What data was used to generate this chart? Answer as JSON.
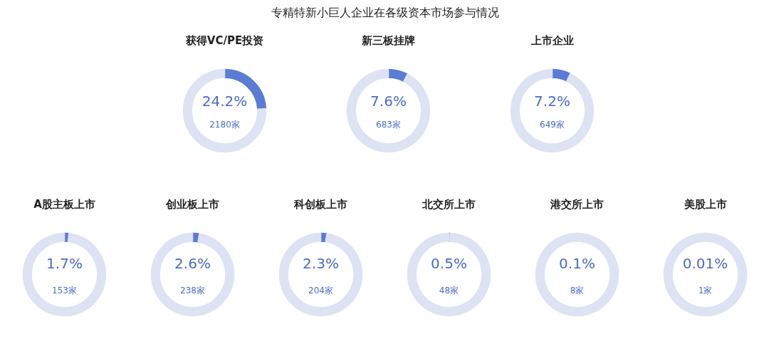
{
  "chart_data": [
    {
      "type": "other",
      "title": "专精特新小巨人企业在各级资本市场参与情况"
    },
    {
      "type": "donut",
      "title": "获得VC/PE投资",
      "categories": [
        null,
        null
      ],
      "values": [
        24.2,
        75.8
      ],
      "colors": [
        "#5b7bd5",
        "#dde3f3"
      ],
      "value_labels": [
        "24.2%",
        null
      ],
      "annotations": [
        "2180家"
      ]
    },
    {
      "type": "donut",
      "title": "新三板挂牌",
      "categories": [
        null,
        null
      ],
      "values": [
        7.6,
        92.4
      ],
      "colors": [
        "#5b7bd5",
        "#dde3f3"
      ],
      "value_labels": [
        "7.6%",
        null
      ],
      "annotations": [
        "683家"
      ]
    },
    {
      "type": "donut",
      "title": "上市企业",
      "categories": [
        null,
        null
      ],
      "values": [
        7.2,
        92.8
      ],
      "colors": [
        "#5b7bd5",
        "#dde3f3"
      ],
      "value_labels": [
        "7.2%",
        null
      ],
      "annotations": [
        "649家"
      ]
    },
    {
      "type": "donut",
      "title": "A股主板上市",
      "categories": [
        null,
        null
      ],
      "values": [
        1.7,
        98.3
      ],
      "colors": [
        "#5b7bd5",
        "#dde3f3"
      ],
      "value_labels": [
        "1.7%",
        null
      ],
      "annotations": [
        "153家"
      ]
    },
    {
      "type": "donut",
      "title": "创业板上市",
      "categories": [
        null,
        null
      ],
      "values": [
        2.6,
        97.4
      ],
      "colors": [
        "#5b7bd5",
        "#dde3f3"
      ],
      "value_labels": [
        "2.6%",
        null
      ],
      "annotations": [
        "238家"
      ]
    },
    {
      "type": "donut",
      "title": "科创板上市",
      "categories": [
        null,
        null
      ],
      "values": [
        2.3,
        97.7
      ],
      "colors": [
        "#5b7bd5",
        "#dde3f3"
      ],
      "value_labels": [
        "2.3%",
        null
      ],
      "annotations": [
        "204家"
      ]
    },
    {
      "type": "donut",
      "title": "北交所上市",
      "categories": [
        null,
        null
      ],
      "values": [
        0.5,
        99.5
      ],
      "colors": [
        "#5b7bd5",
        "#dde3f3"
      ],
      "value_labels": [
        "0.5%",
        null
      ],
      "annotations": [
        "48家"
      ]
    },
    {
      "type": "donut",
      "title": "港交所上市",
      "categories": [
        null,
        null
      ],
      "values": [
        0.1,
        99.9
      ],
      "colors": [
        "#5b7bd5",
        "#dde3f3"
      ],
      "value_labels": [
        "0.1%",
        null
      ],
      "annotations": [
        "8家"
      ]
    },
    {
      "type": "donut",
      "title": "美股上市",
      "categories": [
        null,
        null
      ],
      "values": [
        0.01,
        99.99
      ],
      "colors": [
        "#5b7bd5",
        "#dde3f3"
      ],
      "value_labels": [
        "0.01%",
        null
      ],
      "annotations": [
        "1家"
      ]
    }
  ]
}
